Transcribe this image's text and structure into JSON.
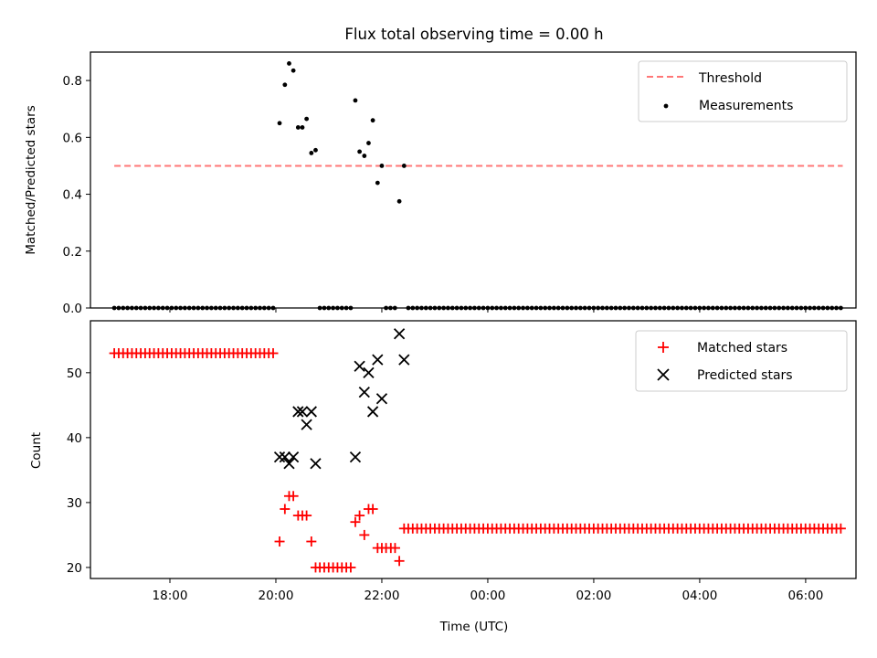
{
  "chart_data": [
    {
      "type": "scatter",
      "title": "Flux total observing time = 0.00 h",
      "xlabel": "",
      "ylabel": "Matched/Predicted stars",
      "xlim": [
        16.5,
        30.95
      ],
      "ylim": [
        0,
        0.9
      ],
      "yticks": [
        0.0,
        0.2,
        0.4,
        0.6,
        0.8
      ],
      "ytick_labels": [
        "0.0",
        "0.2",
        "0.4",
        "0.6",
        "0.8"
      ],
      "legend": {
        "position": "top-right",
        "entries": [
          "Threshold",
          "Measurements"
        ]
      },
      "threshold": {
        "name": "Threshold",
        "value": 0.5,
        "x_start": 16.95,
        "x_end": 30.7,
        "color": "#ff7777"
      },
      "measurements": {
        "name": "Measurements",
        "color": "#000000",
        "points": [
          [
            20.07,
            0.65
          ],
          [
            20.17,
            0.785
          ],
          [
            20.25,
            0.86
          ],
          [
            20.33,
            0.835
          ],
          [
            20.42,
            0.635
          ],
          [
            20.5,
            0.635
          ],
          [
            20.58,
            0.665
          ],
          [
            20.67,
            0.545
          ],
          [
            20.75,
            0.555
          ],
          [
            21.5,
            0.73
          ],
          [
            21.58,
            0.55
          ],
          [
            21.67,
            0.535
          ],
          [
            21.75,
            0.58
          ],
          [
            21.83,
            0.66
          ],
          [
            21.92,
            0.44
          ],
          [
            22.0,
            0.5
          ],
          [
            22.33,
            0.375
          ],
          [
            22.42,
            0.5
          ]
        ],
        "zero_segments": [
          [
            16.95,
            20.0
          ],
          [
            20.83,
            21.42
          ],
          [
            22.08,
            22.25
          ],
          [
            22.5,
            30.7
          ]
        ],
        "zero_step": 0.0833
      }
    },
    {
      "type": "scatter",
      "title": "",
      "xlabel": "Time (UTC)",
      "ylabel": "Count",
      "xlim": [
        16.5,
        30.95
      ],
      "ylim": [
        18.3,
        58
      ],
      "yticks": [
        20,
        30,
        40,
        50
      ],
      "ytick_labels": [
        "20",
        "30",
        "40",
        "50"
      ],
      "xticks": [
        18,
        20,
        22,
        24,
        26,
        28,
        30
      ],
      "xtick_labels": [
        "18:00",
        "20:00",
        "22:00",
        "00:00",
        "02:00",
        "04:00",
        "06:00"
      ],
      "legend": {
        "position": "top-right",
        "entries": [
          "Matched stars",
          "Predicted stars"
        ]
      },
      "series": [
        {
          "name": "Matched stars",
          "marker": "plus",
          "color": "#ff0000",
          "segments": [
            {
              "x_start": 16.95,
              "x_end": 20.0,
              "y": 53
            },
            {
              "x_start": 20.83,
              "x_end": 21.42,
              "y": 20
            },
            {
              "x_start": 22.5,
              "x_end": 30.7,
              "y": 26
            }
          ],
          "points": [
            [
              20.07,
              24
            ],
            [
              20.17,
              29
            ],
            [
              20.25,
              31
            ],
            [
              20.33,
              31
            ],
            [
              20.42,
              28
            ],
            [
              20.5,
              28
            ],
            [
              20.58,
              28
            ],
            [
              20.67,
              24
            ],
            [
              20.75,
              20
            ],
            [
              21.5,
              27
            ],
            [
              21.58,
              28
            ],
            [
              21.67,
              25
            ],
            [
              21.75,
              29
            ],
            [
              21.83,
              29
            ],
            [
              21.92,
              23
            ],
            [
              22.0,
              23
            ],
            [
              22.08,
              23
            ],
            [
              22.17,
              23
            ],
            [
              22.25,
              23
            ],
            [
              22.33,
              21
            ],
            [
              22.42,
              26
            ]
          ],
          "step": 0.0833
        },
        {
          "name": "Predicted stars",
          "marker": "x",
          "color": "#000000",
          "points": [
            [
              20.07,
              37
            ],
            [
              20.17,
              37
            ],
            [
              20.25,
              36
            ],
            [
              20.33,
              37
            ],
            [
              20.42,
              44
            ],
            [
              20.5,
              44
            ],
            [
              20.58,
              42
            ],
            [
              20.67,
              44
            ],
            [
              20.75,
              36
            ],
            [
              21.5,
              37
            ],
            [
              21.58,
              51
            ],
            [
              21.67,
              47
            ],
            [
              21.75,
              50
            ],
            [
              21.83,
              44
            ],
            [
              21.92,
              52
            ],
            [
              22.0,
              46
            ],
            [
              22.33,
              56
            ],
            [
              22.42,
              52
            ]
          ]
        }
      ]
    }
  ]
}
